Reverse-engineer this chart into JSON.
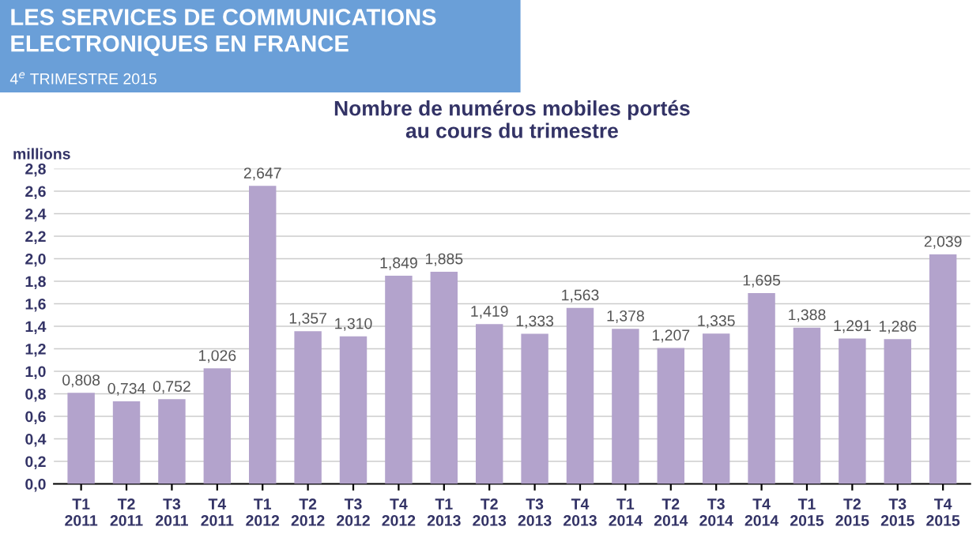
{
  "chart_data": {
    "type": "bar",
    "title": "Nombre de numéros mobiles portés\nau cours du trimestre",
    "ylabel": "millions",
    "annotations": [
      "LES SERVICES DE COMMUNICATIONS\nELECTRONIQUES EN FRANCE",
      "4$^{e}$ TRIMESTRE 2015"
    ],
    "categories": [
      "T1\n2011",
      "T2\n2011",
      "T3\n2011",
      "T4\n2011",
      "T1\n2012",
      "T2\n2012",
      "T3\n2012",
      "T4\n2012",
      "T1\n2013",
      "T2\n2013",
      "T3\n2013",
      "T4\n2013",
      "T1\n2014",
      "T2\n2014",
      "T3\n2014",
      "T4\n2014",
      "T1\n2015",
      "T2\n2015",
      "T3\n2015",
      "T4\n2015"
    ],
    "values": [
      0.808,
      0.734,
      0.752,
      1.026,
      2.647,
      1.357,
      1.31,
      1.849,
      1.885,
      1.419,
      1.333,
      1.563,
      1.378,
      1.207,
      1.335,
      1.695,
      1.388,
      1.291,
      1.286,
      2.039
    ],
    "value_labels": [
      "0,808",
      "0,734",
      "0,752",
      "1,026",
      "2,647",
      "1,357",
      "1,310",
      "1,849",
      "1,885",
      "1,419",
      "1,333",
      "1,563",
      "1,378",
      "1,207",
      "1,335",
      "1,695",
      "1,388",
      "1,291",
      "1,286",
      "2,039"
    ],
    "color": "#b3a3cc",
    "ylim": [
      0,
      2.8
    ],
    "yticks": [
      {
        "value": 0,
        "label": "0,0"
      },
      {
        "value": 0.2,
        "label": "0,2"
      },
      {
        "value": 0.4,
        "label": "0,4"
      },
      {
        "value": 0.6,
        "label": "0,6"
      },
      {
        "value": 0.8,
        "label": "0,8"
      },
      {
        "value": 1.0,
        "label": "1,0"
      },
      {
        "value": 1.2,
        "label": "1,2"
      },
      {
        "value": 1.4,
        "label": "1,4"
      },
      {
        "value": 1.6,
        "label": "1,6"
      },
      {
        "value": 1.8,
        "label": "1,8"
      },
      {
        "value": 2.0,
        "label": "2,0"
      },
      {
        "value": 2.2,
        "label": "2,2"
      },
      {
        "value": 2.4,
        "label": "2,4"
      },
      {
        "value": 2.6,
        "label": "2,6"
      },
      {
        "value": 2.8,
        "label": "2,8"
      }
    ],
    "grid": "y"
  }
}
